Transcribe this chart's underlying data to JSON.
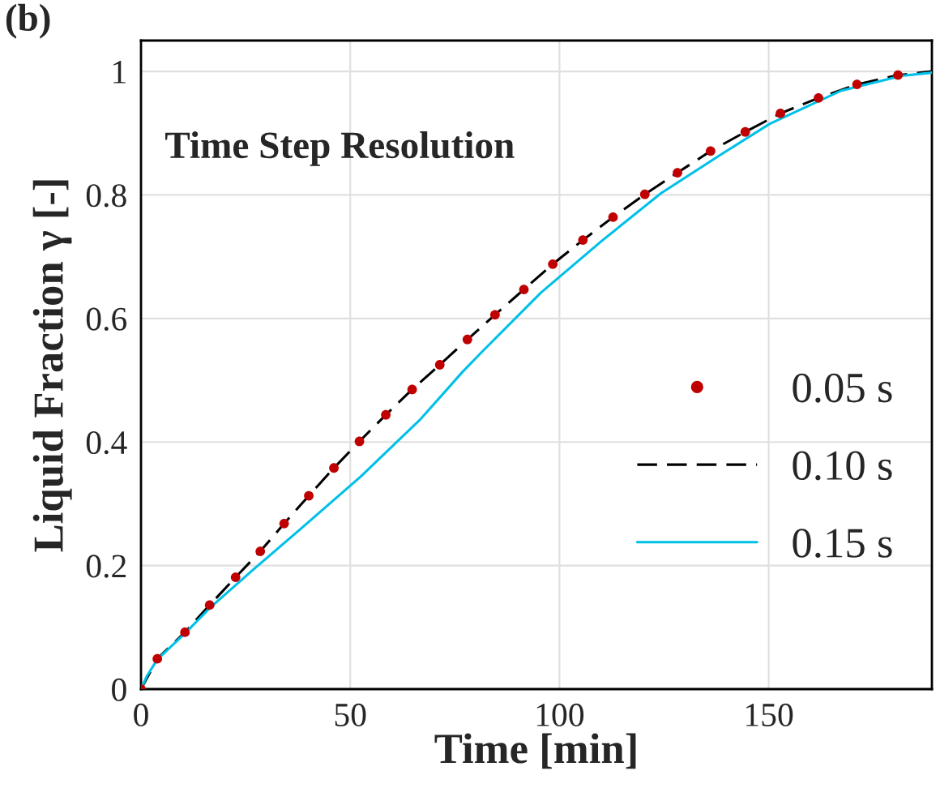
{
  "chart_data": {
    "type": "line",
    "xlabel": "Time [min]",
    "ylabel": "Liquid Fraction γ [-]",
    "annotations": [
      "(b)",
      "Time Step Resolution"
    ],
    "xlim": [
      0,
      189
    ],
    "ylim": [
      0,
      1.05
    ],
    "xticks": [
      0,
      50,
      100,
      150
    ],
    "yticks": [
      0,
      0.2,
      0.4,
      0.6,
      0.8,
      1
    ],
    "grid": true,
    "legend": "lower right",
    "series": [
      {
        "name": "0.05 s",
        "type": "scatter",
        "marker": "circle",
        "color": "#c00000",
        "x": [
          0,
          3.9,
          10.5,
          16.4,
          22.6,
          28.5,
          34.2,
          40.1,
          46.1,
          52.2,
          58.5,
          64.8,
          71.4,
          78.0,
          84.6,
          91.5,
          98.4,
          105.6,
          112.8,
          120.4,
          128.2,
          136.1,
          144.4,
          152.8,
          161.9,
          171.1,
          180.9
        ],
        "values": [
          0,
          0.049,
          0.092,
          0.136,
          0.181,
          0.223,
          0.268,
          0.313,
          0.358,
          0.401,
          0.444,
          0.485,
          0.525,
          0.566,
          0.606,
          0.647,
          0.688,
          0.727,
          0.764,
          0.801,
          0.836,
          0.871,
          0.902,
          0.932,
          0.957,
          0.979,
          0.994
        ]
      },
      {
        "name": "0.10 s",
        "line_style": "dashed",
        "color": "#000000",
        "x": [
          0,
          3.9,
          10.5,
          16.4,
          22.6,
          28.5,
          34.2,
          40.1,
          46.1,
          52.2,
          58.5,
          64.8,
          71.4,
          78.0,
          84.6,
          91.5,
          98.4,
          105.6,
          112.8,
          120.4,
          128.2,
          136.1,
          144.4,
          152.8,
          161.9,
          171.1,
          180.9,
          189
        ],
        "values": [
          0,
          0.049,
          0.092,
          0.136,
          0.181,
          0.223,
          0.268,
          0.313,
          0.358,
          0.401,
          0.444,
          0.485,
          0.525,
          0.566,
          0.606,
          0.647,
          0.688,
          0.727,
          0.764,
          0.801,
          0.836,
          0.871,
          0.902,
          0.932,
          0.957,
          0.979,
          0.994,
          1.0
        ]
      },
      {
        "name": "0.15 s",
        "line_style": "solid",
        "color": "#00c0e8",
        "x": [
          0,
          1.4,
          3.9,
          10.5,
          16.4,
          26.6,
          38.1,
          52.5,
          66.8,
          76.9,
          81.2,
          95.6,
          110,
          124.3,
          138.7,
          150.2,
          167.4,
          181.8,
          189
        ],
        "values": [
          0,
          0.021,
          0.048,
          0.09,
          0.131,
          0.192,
          0.259,
          0.344,
          0.437,
          0.514,
          0.544,
          0.642,
          0.725,
          0.803,
          0.866,
          0.915,
          0.969,
          0.993,
          0.998
        ]
      }
    ]
  }
}
